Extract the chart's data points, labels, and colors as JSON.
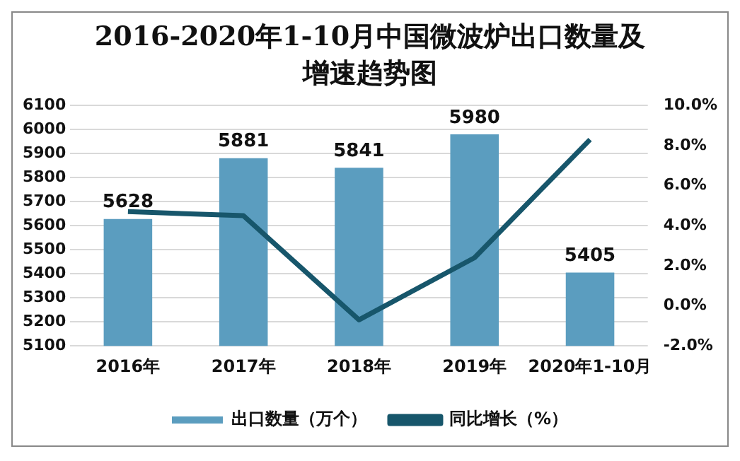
{
  "chart_data": {
    "type": "bar",
    "title": "2016-2020年1-10月中国微波炉出口数量及增速趋势图",
    "categories": [
      "2016年",
      "2017年",
      "2018年",
      "2019年",
      "2020年1-10月"
    ],
    "series": [
      {
        "name": "出口数量（万个）",
        "color": "#5b9dbf",
        "values": [
          5628,
          5881,
          5841,
          5980,
          5405
        ],
        "value_labels": [
          "5628",
          "5881",
          "5841",
          "5980",
          "5405"
        ]
      },
      {
        "name": "同比增长（%）",
        "type": "line",
        "axis": "y2",
        "color": "#17566b",
        "values": [
          4.7,
          4.5,
          -0.7,
          2.4,
          8.3
        ]
      }
    ],
    "ylim": [
      5100,
      6100
    ],
    "yticks": [
      5100,
      5200,
      5300,
      5400,
      5500,
      5600,
      5700,
      5800,
      5900,
      6000,
      6100
    ],
    "y2lim": [
      -2,
      10
    ],
    "y2ticks": [
      {
        "value": -2,
        "label": "-2.0%"
      },
      {
        "value": 0,
        "label": "0.0%"
      },
      {
        "value": 2,
        "label": "2.0%"
      },
      {
        "value": 4,
        "label": "4.0%"
      },
      {
        "value": 6,
        "label": "6.0%"
      },
      {
        "value": 8,
        "label": "8.0%"
      },
      {
        "value": 10,
        "label": "10.0%"
      }
    ],
    "grid": "y",
    "legend": "bottom",
    "marker": "none",
    "line_style": "solid"
  }
}
